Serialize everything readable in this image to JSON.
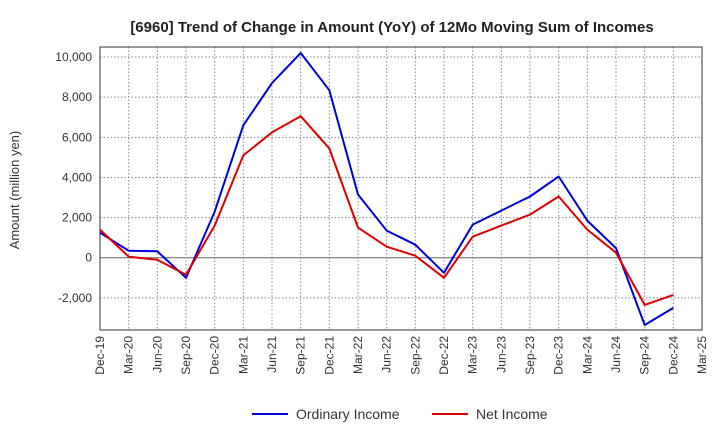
{
  "chart_data": {
    "type": "line",
    "title": "[6960]  Trend of Change in Amount (YoY) of 12Mo Moving Sum of Incomes",
    "xlabel": "",
    "ylabel": "Amount (million yen)",
    "categories": [
      "Dec-19",
      "Mar-20",
      "Jun-20",
      "Sep-20",
      "Dec-20",
      "Mar-21",
      "Jun-21",
      "Sep-21",
      "Dec-21",
      "Mar-22",
      "Jun-22",
      "Sep-22",
      "Dec-22",
      "Mar-23",
      "Jun-23",
      "Sep-23",
      "Dec-23",
      "Mar-24",
      "Jun-24",
      "Sep-24",
      "Dec-24",
      "Mar-25"
    ],
    "ylim": [
      -3600,
      10500
    ],
    "yticks": [
      -2000,
      0,
      2000,
      4000,
      6000,
      8000,
      10000
    ],
    "ytick_labels": [
      "-2,000",
      "0",
      "2,000",
      "4,000",
      "6,000",
      "8,000",
      "10,000"
    ],
    "grid": true,
    "legend_position": "bottom",
    "series": [
      {
        "name": "Ordinary Income",
        "color": "#0000dd",
        "values": [
          1250,
          350,
          320,
          -1000,
          2300,
          6600,
          8700,
          10200,
          8350,
          3150,
          1350,
          650,
          -750,
          1650,
          2350,
          3050,
          4050,
          1850,
          480,
          -3350,
          -2500,
          null
        ]
      },
      {
        "name": "Net Income",
        "color": "#dd0000",
        "values": [
          1400,
          50,
          -100,
          -850,
          1600,
          5100,
          6250,
          7050,
          5450,
          1500,
          550,
          100,
          -1000,
          1050,
          1600,
          2150,
          3050,
          1400,
          250,
          -2350,
          -1850,
          null
        ]
      }
    ]
  }
}
